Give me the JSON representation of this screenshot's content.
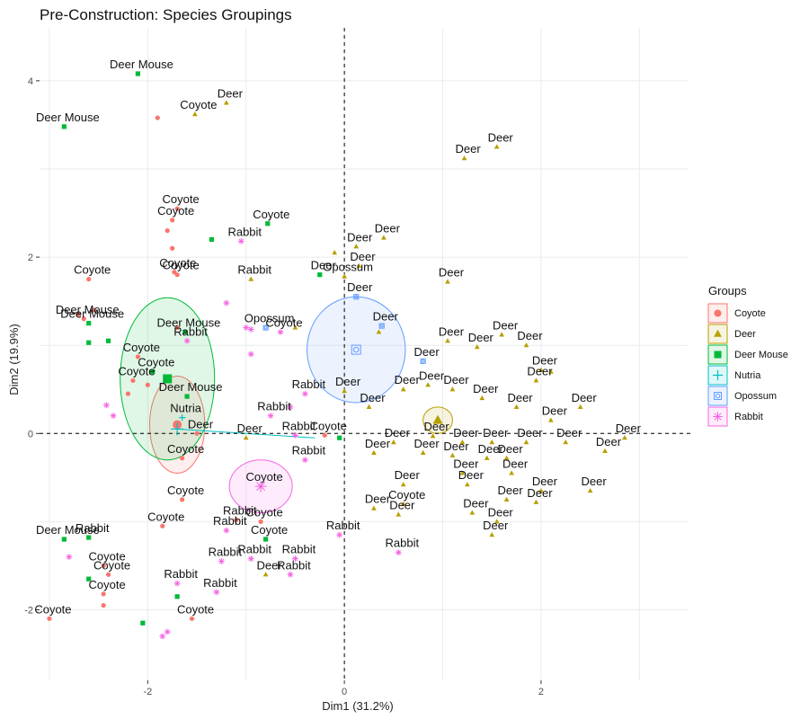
{
  "chart_data": {
    "type": "scatter",
    "title": "Pre-Construction: Species Groupings",
    "xlabel": "Dim1 (31.2%)",
    "ylabel": "Dim2 (19.9%)",
    "xlim": [
      -3.1,
      3.5
    ],
    "ylim": [
      -2.8,
      4.6
    ],
    "xticks": [
      -2,
      0,
      2
    ],
    "yticks": [
      -2,
      0,
      2,
      4
    ],
    "grid": true,
    "reference_lines": [
      {
        "axis": "x",
        "value": 0,
        "style": "dashed"
      },
      {
        "axis": "y",
        "value": 0,
        "style": "dashed"
      }
    ],
    "legend": {
      "title": "Groups",
      "position": "right"
    },
    "groups": [
      {
        "name": "Coyote",
        "color": "#F8766D",
        "shape": "circle",
        "centroid": [
          -1.7,
          0.1
        ],
        "ellipse": {
          "rx": 0.28,
          "ry": 0.55
        }
      },
      {
        "name": "Deer",
        "color": "#B79F00",
        "shape": "triangle",
        "centroid": [
          0.95,
          0.15
        ],
        "ellipse": {
          "rx": 0.15,
          "ry": 0.15
        }
      },
      {
        "name": "Deer Mouse",
        "color": "#00BA38",
        "shape": "square",
        "centroid": [
          -1.8,
          0.62
        ],
        "ellipse": {
          "rx": 0.48,
          "ry": 0.92
        }
      },
      {
        "name": "Nutria",
        "color": "#00BFC4",
        "shape": "plus",
        "centroid": [
          -1.7,
          0.05
        ],
        "ellipse": null
      },
      {
        "name": "Opossum",
        "color": "#619CFF",
        "shape": "square-circle",
        "centroid": [
          0.12,
          0.95
        ],
        "ellipse": {
          "rx": 0.5,
          "ry": 0.6
        }
      },
      {
        "name": "Rabbit",
        "color": "#F564E3",
        "shape": "asterisk",
        "centroid": [
          -0.85,
          -0.6
        ],
        "ellipse": {
          "rx": 0.32,
          "ry": 0.3
        }
      }
    ],
    "points": [
      {
        "group": "Deer Mouse",
        "x": -2.1,
        "y": 4.08,
        "label": "Deer Mouse"
      },
      {
        "group": "Deer Mouse",
        "x": -2.85,
        "y": 3.48,
        "label": "Deer Mouse"
      },
      {
        "group": "Coyote",
        "x": -1.9,
        "y": 3.58,
        "label": ""
      },
      {
        "group": "Deer",
        "x": -1.52,
        "y": 3.62,
        "label": "Coyote"
      },
      {
        "group": "Deer",
        "x": -1.2,
        "y": 3.75,
        "label": "Deer"
      },
      {
        "group": "Deer",
        "x": 1.22,
        "y": 3.12,
        "label": "Deer"
      },
      {
        "group": "Deer",
        "x": 1.55,
        "y": 3.25,
        "label": "Deer"
      },
      {
        "group": "Coyote",
        "x": -1.7,
        "y": 2.55,
        "label": "Coyote"
      },
      {
        "group": "Coyote",
        "x": -1.75,
        "y": 2.42,
        "label": "Coyote"
      },
      {
        "group": "Coyote",
        "x": -1.8,
        "y": 2.3,
        "label": ""
      },
      {
        "group": "Coyote",
        "x": -1.75,
        "y": 2.1,
        "label": ""
      },
      {
        "group": "Deer Mouse",
        "x": -1.35,
        "y": 2.2,
        "label": ""
      },
      {
        "group": "Deer Mouse",
        "x": -0.78,
        "y": 2.38,
        "label": "Coyote"
      },
      {
        "group": "Rabbit",
        "x": -1.05,
        "y": 2.18,
        "label": "Rabbit"
      },
      {
        "group": "Deer",
        "x": 0.4,
        "y": 2.22,
        "label": "Deer"
      },
      {
        "group": "Deer",
        "x": 0.12,
        "y": 2.12,
        "label": "Deer"
      },
      {
        "group": "Deer",
        "x": -0.1,
        "y": 2.05,
        "label": ""
      },
      {
        "group": "Deer",
        "x": 0.15,
        "y": 1.9,
        "label": "Deer"
      },
      {
        "group": "Coyote",
        "x": -2.6,
        "y": 1.75,
        "label": "Coyote"
      },
      {
        "group": "Coyote",
        "x": -1.7,
        "y": 1.8,
        "label": "Coyote"
      },
      {
        "group": "Coyote",
        "x": -1.73,
        "y": 1.83,
        "label": "Coyote"
      },
      {
        "group": "Deer Mouse",
        "x": -0.25,
        "y": 1.8,
        "label": "Deer"
      },
      {
        "group": "Deer",
        "x": -0.95,
        "y": 1.75,
        "label": "Rabbit"
      },
      {
        "group": "Deer",
        "x": 1.05,
        "y": 1.72,
        "label": "Deer"
      },
      {
        "group": "Deer",
        "x": 0.0,
        "y": 1.78,
        "label": "Opossum"
      },
      {
        "group": "Coyote",
        "x": -2.65,
        "y": 1.3,
        "label": "Deer Mouse"
      },
      {
        "group": "Coyote",
        "x": -2.7,
        "y": 1.35,
        "label": ""
      },
      {
        "group": "Coyote",
        "x": -2.55,
        "y": 1.4,
        "label": ""
      },
      {
        "group": "Deer Mouse",
        "x": -2.6,
        "y": 1.25,
        "label": "Deer Mouse"
      },
      {
        "group": "Deer Mouse",
        "x": -2.6,
        "y": 1.03,
        "label": ""
      },
      {
        "group": "Deer Mouse",
        "x": -2.4,
        "y": 1.05,
        "label": ""
      },
      {
        "group": "Deer Mouse",
        "x": -1.62,
        "y": 1.15,
        "label": "Deer Mouse"
      },
      {
        "group": "Coyote",
        "x": -1.7,
        "y": 1.2,
        "label": ""
      },
      {
        "group": "Rabbit",
        "x": -1.6,
        "y": 1.05,
        "label": "Rabbit"
      },
      {
        "group": "Rabbit",
        "x": -1.2,
        "y": 1.48,
        "label": ""
      },
      {
        "group": "Rabbit",
        "x": -1.0,
        "y": 1.2,
        "label": ""
      },
      {
        "group": "Rabbit",
        "x": -0.95,
        "y": 1.18,
        "label": ""
      },
      {
        "group": "Opossum",
        "x": -0.8,
        "y": 1.2,
        "label": "Opossum"
      },
      {
        "group": "Rabbit",
        "x": -0.65,
        "y": 1.15,
        "label": "Coyote"
      },
      {
        "group": "Deer",
        "x": -0.5,
        "y": 1.2,
        "label": ""
      },
      {
        "group": "Rabbit",
        "x": -0.95,
        "y": 0.9,
        "label": ""
      },
      {
        "group": "Opossum",
        "x": 0.12,
        "y": 1.55,
        "label": "Deer"
      },
      {
        "group": "Opossum",
        "x": 0.38,
        "y": 1.22,
        "label": "Deer"
      },
      {
        "group": "Deer",
        "x": 0.35,
        "y": 1.15,
        "label": ""
      },
      {
        "group": "Opossum",
        "x": 0.8,
        "y": 0.82,
        "label": "Deer"
      },
      {
        "group": "Deer",
        "x": 1.05,
        "y": 1.05,
        "label": "Deer"
      },
      {
        "group": "Deer",
        "x": 1.35,
        "y": 0.98,
        "label": "Deer"
      },
      {
        "group": "Deer",
        "x": 1.6,
        "y": 1.12,
        "label": "Deer"
      },
      {
        "group": "Deer",
        "x": 1.85,
        "y": 1.0,
        "label": "Deer"
      },
      {
        "group": "Deer",
        "x": 2.0,
        "y": 0.72,
        "label": "Deer"
      },
      {
        "group": "Deer",
        "x": 1.95,
        "y": 0.6,
        "label": "Deer"
      },
      {
        "group": "Deer",
        "x": 2.1,
        "y": 0.7,
        "label": ""
      },
      {
        "group": "Coyote",
        "x": -2.1,
        "y": 0.87,
        "label": "Coyote"
      },
      {
        "group": "Deer Mouse",
        "x": -1.95,
        "y": 0.7,
        "label": "Coyote"
      },
      {
        "group": "Coyote",
        "x": -2.15,
        "y": 0.6,
        "label": "Coyote"
      },
      {
        "group": "Coyote",
        "x": -2.0,
        "y": 0.55,
        "label": ""
      },
      {
        "group": "Coyote",
        "x": -2.2,
        "y": 0.45,
        "label": ""
      },
      {
        "group": "Rabbit",
        "x": -2.42,
        "y": 0.32,
        "label": ""
      },
      {
        "group": "Rabbit",
        "x": -2.35,
        "y": 0.2,
        "label": ""
      },
      {
        "group": "Rabbit",
        "x": -0.4,
        "y": 0.45,
        "label": "Rabbit"
      },
      {
        "group": "Rabbit",
        "x": -0.55,
        "y": 0.3,
        "label": ""
      },
      {
        "group": "Rabbit",
        "x": -0.75,
        "y": 0.2,
        "label": "Rabbit"
      },
      {
        "group": "Deer",
        "x": 0.0,
        "y": 0.48,
        "label": "Deer"
      },
      {
        "group": "Deer",
        "x": 0.25,
        "y": 0.3,
        "label": "Deer"
      },
      {
        "group": "Deer",
        "x": 0.6,
        "y": 0.5,
        "label": "Deer"
      },
      {
        "group": "Deer",
        "x": 0.85,
        "y": 0.55,
        "label": "Deer"
      },
      {
        "group": "Deer",
        "x": 1.1,
        "y": 0.5,
        "label": "Deer"
      },
      {
        "group": "Deer",
        "x": 1.4,
        "y": 0.4,
        "label": "Deer"
      },
      {
        "group": "Deer",
        "x": 1.75,
        "y": 0.3,
        "label": "Deer"
      },
      {
        "group": "Deer",
        "x": 2.4,
        "y": 0.3,
        "label": "Deer"
      },
      {
        "group": "Deer",
        "x": 2.1,
        "y": 0.15,
        "label": "Deer"
      },
      {
        "group": "Deer Mouse",
        "x": -1.6,
        "y": 0.42,
        "label": "Deer Mouse"
      },
      {
        "group": "Nutria",
        "x": -1.65,
        "y": 0.18,
        "label": "Nutria"
      },
      {
        "group": "Coyote",
        "x": -1.5,
        "y": 0.0,
        "label": "Deer"
      },
      {
        "group": "Deer",
        "x": -1.0,
        "y": -0.05,
        "label": "Deer"
      },
      {
        "group": "Rabbit",
        "x": -0.5,
        "y": -0.02,
        "label": "Rabbit"
      },
      {
        "group": "Coyote",
        "x": -0.2,
        "y": -0.02,
        "label": "Coyote"
      },
      {
        "group": "Deer Mouse",
        "x": -0.05,
        "y": -0.05,
        "label": ""
      },
      {
        "group": "Rabbit",
        "x": -0.4,
        "y": -0.3,
        "label": "Rabbit"
      },
      {
        "group": "Deer",
        "x": 0.5,
        "y": -0.1,
        "label": "Deer"
      },
      {
        "group": "Deer",
        "x": 0.9,
        "y": -0.03,
        "label": "Deer"
      },
      {
        "group": "Deer",
        "x": 1.2,
        "y": -0.1,
        "label": "Deer"
      },
      {
        "group": "Deer",
        "x": 1.5,
        "y": -0.1,
        "label": "Deer"
      },
      {
        "group": "Deer",
        "x": 1.85,
        "y": -0.1,
        "label": "Deer"
      },
      {
        "group": "Deer",
        "x": 2.25,
        "y": -0.1,
        "label": "Deer"
      },
      {
        "group": "Deer",
        "x": 2.85,
        "y": -0.05,
        "label": "Deer"
      },
      {
        "group": "Deer",
        "x": 2.65,
        "y": -0.2,
        "label": "Deer"
      },
      {
        "group": "Deer",
        "x": 0.3,
        "y": -0.22,
        "label": "Deer"
      },
      {
        "group": "Deer",
        "x": 0.8,
        "y": -0.22,
        "label": "Deer"
      },
      {
        "group": "Deer",
        "x": 1.1,
        "y": -0.25,
        "label": "Deer"
      },
      {
        "group": "Deer",
        "x": 1.45,
        "y": -0.28,
        "label": "Deer"
      },
      {
        "group": "Deer",
        "x": 1.65,
        "y": -0.28,
        "label": "Deer"
      },
      {
        "group": "Deer",
        "x": 1.2,
        "y": -0.45,
        "label": "Deer"
      },
      {
        "group": "Deer",
        "x": 1.7,
        "y": -0.45,
        "label": "Deer"
      },
      {
        "group": "Deer",
        "x": 1.25,
        "y": -0.58,
        "label": "Deer"
      },
      {
        "group": "Deer",
        "x": 0.6,
        "y": -0.58,
        "label": "Deer"
      },
      {
        "group": "Deer",
        "x": 2.0,
        "y": -0.65,
        "label": "Deer"
      },
      {
        "group": "Deer",
        "x": 2.5,
        "y": -0.65,
        "label": "Deer"
      },
      {
        "group": "Deer",
        "x": 1.65,
        "y": -0.75,
        "label": "Deer"
      },
      {
        "group": "Deer",
        "x": 1.95,
        "y": -0.78,
        "label": "Deer"
      },
      {
        "group": "Coyote",
        "x": -1.65,
        "y": -0.28,
        "label": "Coyote"
      },
      {
        "group": "Rabbit",
        "x": -0.85,
        "y": -0.6,
        "label": "Coyote"
      },
      {
        "group": "Deer",
        "x": 0.3,
        "y": -0.85,
        "label": "Deer"
      },
      {
        "group": "Deer",
        "x": 0.6,
        "y": -0.8,
        "label": "Coyote"
      },
      {
        "group": "Deer",
        "x": 0.55,
        "y": -0.92,
        "label": "Deer"
      },
      {
        "group": "Deer",
        "x": 1.3,
        "y": -0.9,
        "label": "Deer"
      },
      {
        "group": "Deer",
        "x": 1.55,
        "y": -1.0,
        "label": "Deer"
      },
      {
        "group": "Deer",
        "x": 1.5,
        "y": -1.15,
        "label": "Deer"
      },
      {
        "group": "Coyote",
        "x": -1.65,
        "y": -0.75,
        "label": "Coyote"
      },
      {
        "group": "Coyote",
        "x": -1.1,
        "y": -0.98,
        "label": "Rabbit"
      },
      {
        "group": "Coyote",
        "x": -0.85,
        "y": -1.0,
        "label": "Coyote"
      },
      {
        "group": "Coyote",
        "x": -1.85,
        "y": -1.05,
        "label": "Coyote"
      },
      {
        "group": "Rabbit",
        "x": -1.2,
        "y": -1.1,
        "label": "Rabbit"
      },
      {
        "group": "Deer Mouse",
        "x": -0.8,
        "y": -1.2,
        "label": "Coyote"
      },
      {
        "group": "Rabbit",
        "x": -0.05,
        "y": -1.15,
        "label": "Rabbit"
      },
      {
        "group": "Rabbit",
        "x": 0.55,
        "y": -1.35,
        "label": "Rabbit"
      },
      {
        "group": "Deer Mouse",
        "x": -2.85,
        "y": -1.2,
        "label": "Deer Mouse"
      },
      {
        "group": "Deer Mouse",
        "x": -2.6,
        "y": -1.18,
        "label": "Rabbit"
      },
      {
        "group": "Rabbit",
        "x": -2.8,
        "y": -1.4,
        "label": ""
      },
      {
        "group": "Coyote",
        "x": -2.45,
        "y": -1.5,
        "label": "Coyote"
      },
      {
        "group": "Coyote",
        "x": -2.4,
        "y": -1.6,
        "label": "Coyote"
      },
      {
        "group": "Deer Mouse",
        "x": -2.6,
        "y": -1.65,
        "label": ""
      },
      {
        "group": "Rabbit",
        "x": -1.25,
        "y": -1.45,
        "label": "Rabbit"
      },
      {
        "group": "Rabbit",
        "x": -0.95,
        "y": -1.42,
        "label": "Rabbit"
      },
      {
        "group": "Deer",
        "x": -0.8,
        "y": -1.6,
        "label": "Deer"
      },
      {
        "group": "Rabbit",
        "x": -0.5,
        "y": -1.42,
        "label": "Rabbit"
      },
      {
        "group": "Rabbit",
        "x": -0.55,
        "y": -1.6,
        "label": "Rabbit"
      },
      {
        "group": "Coyote",
        "x": -2.45,
        "y": -1.82,
        "label": "Coyote"
      },
      {
        "group": "Rabbit",
        "x": -1.7,
        "y": -1.7,
        "label": "Rabbit"
      },
      {
        "group": "Rabbit",
        "x": -1.3,
        "y": -1.8,
        "label": "Rabbit"
      },
      {
        "group": "Coyote",
        "x": -3.0,
        "y": -2.1,
        "label": "Coyote"
      },
      {
        "group": "Coyote",
        "x": -2.45,
        "y": -1.95,
        "label": ""
      },
      {
        "group": "Deer Mouse",
        "x": -1.7,
        "y": -1.85,
        "label": ""
      },
      {
        "group": "Coyote",
        "x": -1.55,
        "y": -2.1,
        "label": "Coyote"
      },
      {
        "group": "Deer Mouse",
        "x": -2.05,
        "y": -2.15,
        "label": ""
      },
      {
        "group": "Rabbit",
        "x": -1.85,
        "y": -2.3,
        "label": ""
      },
      {
        "group": "Rabbit",
        "x": -1.8,
        "y": -2.25,
        "label": ""
      }
    ]
  }
}
